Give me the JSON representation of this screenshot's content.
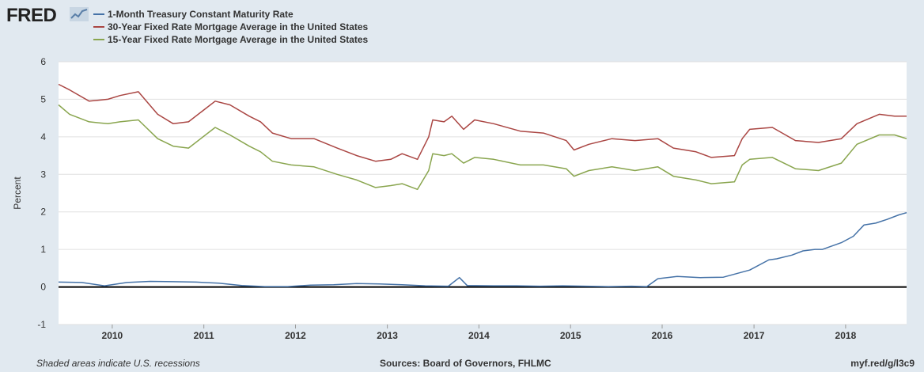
{
  "brand": {
    "name": "FRED"
  },
  "icons": {
    "logo_graph": "chart-trend-icon"
  },
  "chart_data": {
    "type": "line",
    "title": "",
    "xlabel": "",
    "ylabel": "Percent",
    "xlim": [
      "2009-06-01",
      "2018-09-01"
    ],
    "ylim": [
      -1,
      6
    ],
    "yticks": [
      -1,
      0,
      1,
      2,
      3,
      4,
      5,
      6
    ],
    "xticks": [
      "2010",
      "2011",
      "2012",
      "2013",
      "2014",
      "2015",
      "2016",
      "2017",
      "2018"
    ],
    "grid": true,
    "legend": "top-left",
    "series": [
      {
        "name": "1-Month Treasury Constant Maturity Rate",
        "color": "#4572a7",
        "x": [
          "2009-06-01",
          "2009-09-01",
          "2009-12-01",
          "2010-03-01",
          "2010-06-01",
          "2010-09-01",
          "2010-12-01",
          "2011-03-01",
          "2011-06-01",
          "2011-09-01",
          "2011-12-01",
          "2012-03-01",
          "2012-06-01",
          "2012-09-01",
          "2012-12-01",
          "2013-03-01",
          "2013-06-01",
          "2013-09-01",
          "2013-10-15",
          "2013-11-15",
          "2014-03-01",
          "2014-06-01",
          "2014-09-01",
          "2014-12-01",
          "2015-03-01",
          "2015-06-01",
          "2015-09-01",
          "2015-11-01",
          "2015-12-15",
          "2016-03-01",
          "2016-06-01",
          "2016-09-01",
          "2016-12-15",
          "2017-03-01",
          "2017-04-01",
          "2017-06-01",
          "2017-07-15",
          "2017-09-01",
          "2017-10-01",
          "2017-12-15",
          "2018-02-01",
          "2018-03-15",
          "2018-05-01",
          "2018-06-15",
          "2018-08-01",
          "2018-09-01"
        ],
        "values": [
          0.13,
          0.12,
          0.03,
          0.12,
          0.15,
          0.14,
          0.13,
          0.1,
          0.04,
          0.01,
          0.01,
          0.05,
          0.06,
          0.09,
          0.08,
          0.06,
          0.03,
          0.02,
          0.25,
          0.04,
          0.03,
          0.03,
          0.02,
          0.03,
          0.02,
          0.01,
          0.02,
          0.01,
          0.22,
          0.28,
          0.25,
          0.26,
          0.45,
          0.72,
          0.75,
          0.85,
          0.96,
          1.0,
          1.0,
          1.18,
          1.35,
          1.65,
          1.7,
          1.8,
          1.92,
          1.98
        ]
      },
      {
        "name": "30-Year Fixed Rate Mortgage Average in the United States",
        "color": "#aa4643",
        "x": [
          "2009-06-01",
          "2009-07-15",
          "2009-10-01",
          "2009-12-15",
          "2010-02-01",
          "2010-04-15",
          "2010-07-01",
          "2010-09-01",
          "2010-11-01",
          "2011-02-15",
          "2011-04-15",
          "2011-07-01",
          "2011-08-15",
          "2011-10-01",
          "2011-12-15",
          "2012-03-15",
          "2012-06-15",
          "2012-09-01",
          "2012-11-15",
          "2013-01-15",
          "2013-03-01",
          "2013-05-01",
          "2013-06-15",
          "2013-07-01",
          "2013-08-15",
          "2013-09-15",
          "2013-11-01",
          "2013-12-15",
          "2014-03-01",
          "2014-06-15",
          "2014-09-15",
          "2014-12-15",
          "2015-01-15",
          "2015-03-15",
          "2015-06-15",
          "2015-09-15",
          "2015-12-15",
          "2016-02-15",
          "2016-05-15",
          "2016-07-15",
          "2016-10-15",
          "2016-11-15",
          "2016-12-15",
          "2017-03-15",
          "2017-06-15",
          "2017-09-15",
          "2017-12-15",
          "2018-02-15",
          "2018-05-15",
          "2018-07-15",
          "2018-09-01"
        ],
        "values": [
          5.4,
          5.25,
          4.95,
          5.0,
          5.1,
          5.2,
          4.6,
          4.35,
          4.4,
          4.95,
          4.85,
          4.55,
          4.4,
          4.1,
          3.95,
          3.95,
          3.7,
          3.5,
          3.35,
          3.4,
          3.55,
          3.4,
          4.0,
          4.45,
          4.4,
          4.55,
          4.2,
          4.45,
          4.35,
          4.15,
          4.1,
          3.9,
          3.65,
          3.8,
          3.95,
          3.9,
          3.95,
          3.7,
          3.6,
          3.45,
          3.5,
          3.95,
          4.2,
          4.25,
          3.9,
          3.85,
          3.95,
          4.35,
          4.6,
          4.55,
          4.55
        ]
      },
      {
        "name": "15-Year Fixed Rate Mortgage Average in the United States",
        "color": "#89a54e",
        "x": [
          "2009-06-01",
          "2009-07-15",
          "2009-10-01",
          "2009-12-15",
          "2010-02-01",
          "2010-04-15",
          "2010-07-01",
          "2010-09-01",
          "2010-11-01",
          "2011-02-15",
          "2011-04-15",
          "2011-07-01",
          "2011-08-15",
          "2011-10-01",
          "2011-12-15",
          "2012-03-15",
          "2012-06-15",
          "2012-09-01",
          "2012-11-15",
          "2013-01-15",
          "2013-03-01",
          "2013-05-01",
          "2013-06-15",
          "2013-07-01",
          "2013-08-15",
          "2013-09-15",
          "2013-11-01",
          "2013-12-15",
          "2014-03-01",
          "2014-06-15",
          "2014-09-15",
          "2014-12-15",
          "2015-01-15",
          "2015-03-15",
          "2015-06-15",
          "2015-09-15",
          "2015-12-15",
          "2016-02-15",
          "2016-05-15",
          "2016-07-15",
          "2016-10-15",
          "2016-11-15",
          "2016-12-15",
          "2017-03-15",
          "2017-06-15",
          "2017-09-15",
          "2017-12-15",
          "2018-02-15",
          "2018-05-15",
          "2018-07-15",
          "2018-09-01"
        ],
        "values": [
          4.85,
          4.6,
          4.4,
          4.35,
          4.4,
          4.45,
          3.95,
          3.75,
          3.7,
          4.25,
          4.05,
          3.75,
          3.6,
          3.35,
          3.25,
          3.2,
          3.0,
          2.85,
          2.65,
          2.7,
          2.75,
          2.6,
          3.1,
          3.55,
          3.5,
          3.55,
          3.3,
          3.45,
          3.4,
          3.25,
          3.25,
          3.15,
          2.95,
          3.1,
          3.2,
          3.1,
          3.2,
          2.95,
          2.85,
          2.75,
          2.8,
          3.25,
          3.4,
          3.45,
          3.15,
          3.1,
          3.3,
          3.8,
          4.05,
          4.05,
          3.95
        ]
      }
    ]
  },
  "footer": {
    "note": "Shaded areas indicate U.S. recessions",
    "sources": "Sources: Board of Governors, FHLMC",
    "link": "myf.red/g/l3c9"
  }
}
